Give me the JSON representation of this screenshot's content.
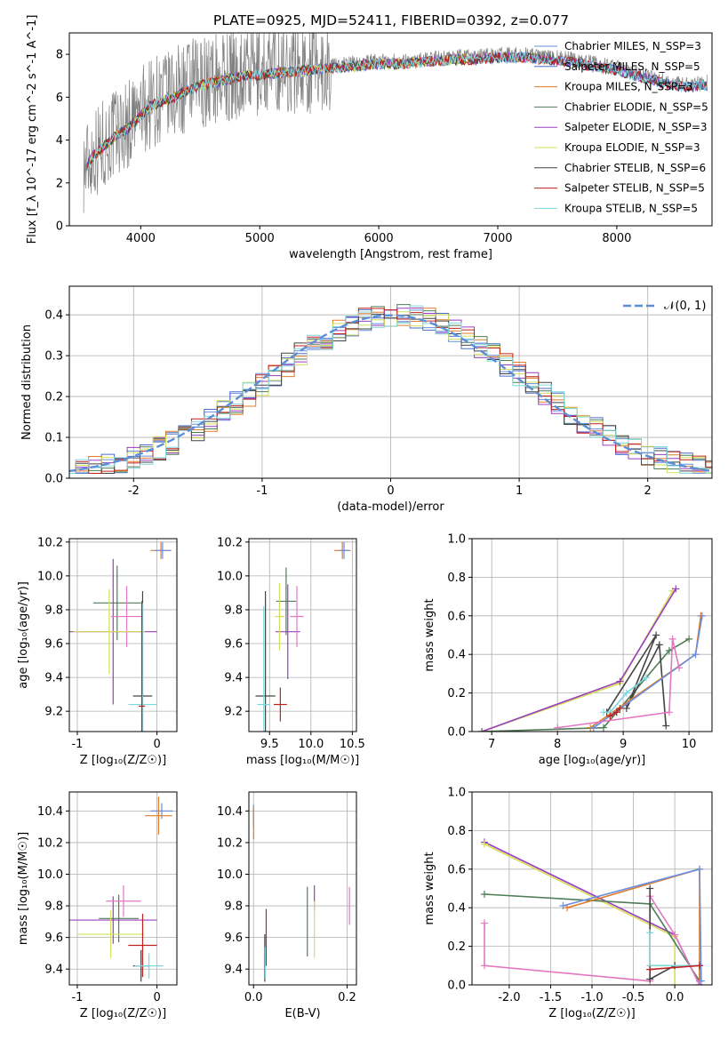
{
  "chart_data": [
    {
      "id": "spectrum",
      "type": "line",
      "title": "PLATE=0925, MJD=52411, FIBERID=0392, z=0.077",
      "xlabel": "wavelength [Angstrom, rest frame]",
      "ylabel": "Flux [f_λ 10^-17 erg cm^-2 s^-1 A^-1]",
      "xlim": [
        3400,
        8800
      ],
      "ylim": [
        0,
        9
      ],
      "xticks": [
        4000,
        5000,
        6000,
        7000,
        8000
      ],
      "yticks": [
        0,
        2,
        4,
        6,
        8
      ],
      "grid": false,
      "legend_position": "top-right",
      "data_continuum": {
        "x": [
          3530,
          3600,
          3700,
          3800,
          3900,
          4000,
          4100,
          4200,
          4300,
          4400,
          4500,
          4600,
          4800,
          5000,
          5200,
          5400,
          5600,
          5800,
          6000,
          6200,
          6400,
          6600,
          6800,
          7000,
          7200,
          7400,
          7600,
          7800,
          8000,
          8200,
          8400,
          8600,
          8750
        ],
        "y": [
          2.8,
          3.4,
          3.9,
          4.4,
          4.7,
          5.3,
          5.8,
          6.0,
          6.2,
          6.5,
          6.7,
          6.8,
          7.1,
          7.2,
          7.3,
          7.4,
          7.5,
          7.6,
          7.7,
          7.7,
          7.8,
          7.9,
          7.9,
          8.0,
          8.0,
          7.9,
          7.8,
          7.6,
          7.4,
          7.1,
          6.8,
          6.6,
          6.7
        ]
      },
      "series": [
        {
          "name": "Chabrier MILES, N_SSP=3",
          "color": "#6a8ee0"
        },
        {
          "name": "Salpeter MILES, N_SSP=5",
          "color": "#4a6fc8"
        },
        {
          "name": "Kroupa MILES, N_SSP=3",
          "color": "#e07b2a"
        },
        {
          "name": "Chabrier ELODIE, N_SSP=5",
          "color": "#4f7d56"
        },
        {
          "name": "Salpeter ELODIE, N_SSP=3",
          "color": "#9a3fbf"
        },
        {
          "name": "Kroupa ELODIE, N_SSP=3",
          "color": "#d4e05a"
        },
        {
          "name": "Chabrier STELIB, N_SSP=6",
          "color": "#444444"
        },
        {
          "name": "Salpeter STELIB, N_SSP=5",
          "color": "#c0201e"
        },
        {
          "name": "Kroupa STELIB, N_SSP=5",
          "color": "#7fd6dc"
        }
      ]
    },
    {
      "id": "residuals",
      "type": "line",
      "xlabel": "(data-model)/error",
      "ylabel": "Normed distribution",
      "xlim": [
        -2.5,
        2.5
      ],
      "ylim": [
        0,
        0.47
      ],
      "xticks": [
        -2,
        -1,
        0,
        1,
        2
      ],
      "yticks": [
        0.0,
        0.1,
        0.2,
        0.3,
        0.4
      ],
      "grid": true,
      "legend_position": "top-right",
      "legend_label": "𝒩(0, 1)",
      "gaussian": {
        "mean": 0,
        "sigma": 1,
        "color": "#5b8ed6"
      },
      "bin_width": 0.1,
      "base_histogram": [
        0.018,
        0.019,
        0.021,
        0.024,
        0.027,
        0.031,
        0.036,
        0.041,
        0.047,
        0.054,
        0.061,
        0.069,
        0.078,
        0.087,
        0.098,
        0.108,
        0.122,
        0.135,
        0.15,
        0.166,
        0.183,
        0.2,
        0.218,
        0.236,
        0.255,
        0.274,
        0.293,
        0.312,
        0.33,
        0.347,
        0.362,
        0.376,
        0.387,
        0.394,
        0.398,
        0.399,
        0.397,
        0.392,
        0.384,
        0.372,
        0.358,
        0.342,
        0.324,
        0.305,
        0.286,
        0.266,
        0.246,
        0.226,
        0.207,
        0.188,
        0.17,
        0.153,
        0.137,
        0.121,
        0.107,
        0.094,
        0.082,
        0.071,
        0.061,
        0.052,
        0.045,
        0.039,
        0.034,
        0.03,
        0.027,
        0.025,
        0.023,
        0.022,
        0.021,
        0.02,
        0.02,
        0.019,
        0.019,
        0.018,
        0.018,
        0.018,
        0.018,
        0.018,
        0.018,
        0.018,
        0.018,
        0.018,
        0.018,
        0.018,
        0.018,
        0.018,
        0.018,
        0.018,
        0.018,
        0.018,
        0.018,
        0.018,
        0.018,
        0.018,
        0.018,
        0.018,
        0.018,
        0.018,
        0.018,
        0.018
      ]
    },
    {
      "id": "age_vs_Z",
      "type": "scatter",
      "xlabel": "Z [log₁₀(Z/Z☉)]",
      "ylabel": "age  [log₁₀(age/yr)]",
      "xlim": [
        -1.1,
        0.25
      ],
      "ylim": [
        9.08,
        10.22
      ],
      "xticks": [
        -1,
        0
      ],
      "yticks": [
        9.2,
        9.4,
        9.6,
        9.8,
        10.0,
        10.2
      ],
      "grid": true,
      "points": [
        {
          "color": "#e07b2a",
          "x": 0.05,
          "y": 10.15,
          "xerr": 0.13,
          "yerr": 0.05
        },
        {
          "color": "#6a8ee0",
          "x": 0.07,
          "y": 10.15,
          "xerr": 0.1,
          "yerr": 0.05
        },
        {
          "color": "#9a3fbf",
          "x": -0.55,
          "y": 9.67,
          "xerr": 0.55,
          "yerr": 0.43
        },
        {
          "color": "#4f7d56",
          "x": -0.5,
          "y": 9.84,
          "xerr": 0.3,
          "yerr": 0.22
        },
        {
          "color": "#e377c2",
          "x": -0.38,
          "y": 9.76,
          "xerr": 0.2,
          "yerr": 0.18
        },
        {
          "color": "#d4e05a",
          "x": -0.6,
          "y": 9.67,
          "xerr": 0.45,
          "yerr": 0.25
        },
        {
          "color": "#444444",
          "x": -0.18,
          "y": 9.29,
          "xerr": 0.12,
          "yerr": 0.62
        },
        {
          "color": "#7fd6dc",
          "x": -0.18,
          "y": 9.24,
          "xerr": 0.18,
          "yerr": 0.6
        },
        {
          "color": "#c0201e",
          "x": -0.19,
          "y": 9.23,
          "xerr": 0.04,
          "yerr": 0.62
        }
      ]
    },
    {
      "id": "age_vs_mass",
      "type": "scatter",
      "xlabel": "mass [log₁₀(M/M☉)]",
      "ylabel": "",
      "xlim": [
        9.25,
        10.55
      ],
      "ylim": [
        9.08,
        10.22
      ],
      "xticks": [
        9.5,
        10.0,
        10.5
      ],
      "yticks": [
        9.2,
        9.4,
        9.6,
        9.8,
        10.0,
        10.2
      ],
      "grid": true,
      "points": [
        {
          "color": "#e07b2a",
          "x": 10.38,
          "y": 10.15,
          "xerr": 0.1,
          "yerr": 0.05
        },
        {
          "color": "#6a8ee0",
          "x": 10.4,
          "y": 10.15,
          "xerr": 0.06,
          "yerr": 0.05
        },
        {
          "color": "#9a3fbf",
          "x": 9.72,
          "y": 9.67,
          "xerr": 0.15,
          "yerr": 0.28
        },
        {
          "color": "#4f7d56",
          "x": 9.7,
          "y": 9.85,
          "xerr": 0.12,
          "yerr": 0.2
        },
        {
          "color": "#e377c2",
          "x": 9.83,
          "y": 9.76,
          "xerr": 0.08,
          "yerr": 0.18
        },
        {
          "color": "#d4e05a",
          "x": 9.62,
          "y": 9.76,
          "xerr": 0.06,
          "yerr": 0.2
        },
        {
          "color": "#444444",
          "x": 9.45,
          "y": 9.29,
          "xerr": 0.12,
          "yerr": 0.62
        },
        {
          "color": "#7fd6dc",
          "x": 9.43,
          "y": 9.24,
          "xerr": 0.08,
          "yerr": 0.58
        },
        {
          "color": "#c0201e",
          "x": 9.63,
          "y": 9.24,
          "xerr": 0.08,
          "yerr": 0.1
        }
      ]
    },
    {
      "id": "massweight_vs_age",
      "type": "line",
      "xlabel": "age  [log₁₀(age/yr)]",
      "ylabel": "mass weight",
      "xlim": [
        6.7,
        10.35
      ],
      "ylim": [
        0,
        1
      ],
      "xticks": [
        7,
        8,
        9,
        10
      ],
      "yticks": [
        0.0,
        0.2,
        0.4,
        0.6,
        0.8,
        1.0
      ],
      "grid": true,
      "series": [
        {
          "color": "#d4e05a",
          "x": [
            6.85,
            8.95,
            9.75
          ],
          "y": [
            0.0,
            0.25,
            0.73
          ]
        },
        {
          "color": "#9a3fbf",
          "x": [
            6.85,
            8.95,
            9.8
          ],
          "y": [
            0.0,
            0.26,
            0.74
          ]
        },
        {
          "color": "#4f7d56",
          "x": [
            6.85,
            8.7,
            8.9,
            9.7,
            10.0
          ],
          "y": [
            0.0,
            0.02,
            0.1,
            0.42,
            0.48
          ]
        },
        {
          "color": "#444444",
          "x": [
            8.75,
            9.5,
            9.05,
            9.55,
            9.65
          ],
          "y": [
            0.1,
            0.5,
            0.12,
            0.45,
            0.03
          ]
        },
        {
          "color": "#e07b2a",
          "x": [
            8.5,
            10.1,
            10.18
          ],
          "y": [
            0.02,
            0.4,
            0.6
          ]
        },
        {
          "color": "#6a8ee0",
          "x": [
            8.55,
            10.1,
            10.2
          ],
          "y": [
            0.02,
            0.4,
            0.6
          ]
        },
        {
          "color": "#e377c2",
          "x": [
            8.0,
            9.7,
            9.75,
            9.85
          ],
          "y": [
            0.02,
            0.1,
            0.48,
            0.33
          ]
        },
        {
          "color": "#7fd6dc",
          "x": [
            8.7,
            8.8,
            9.05,
            9.35
          ],
          "y": [
            0.1,
            0.1,
            0.2,
            0.28
          ]
        },
        {
          "color": "#c0201e",
          "x": [
            8.8,
            8.9,
            8.95
          ],
          "y": [
            0.08,
            0.1,
            0.12
          ]
        }
      ]
    },
    {
      "id": "mass_vs_Z",
      "type": "scatter",
      "xlabel": "Z [log₁₀(Z/Z☉)]",
      "ylabel": "mass [log₁₀(M/M☉)]",
      "xlim": [
        -1.1,
        0.25
      ],
      "ylim": [
        9.3,
        10.52
      ],
      "xticks": [
        -1,
        0
      ],
      "yticks": [
        9.4,
        9.6,
        9.8,
        10.0,
        10.2,
        10.4
      ],
      "grid": true,
      "points": [
        {
          "color": "#6a8ee0",
          "x": 0.06,
          "y": 10.4,
          "xerr": 0.14,
          "yerr": 0.05
        },
        {
          "color": "#e07b2a",
          "x": 0.02,
          "y": 10.37,
          "xerr": 0.17,
          "yerr": 0.12
        },
        {
          "color": "#9a3fbf",
          "x": -0.55,
          "y": 9.71,
          "xerr": 0.55,
          "yerr": 0.15
        },
        {
          "color": "#4f7d56",
          "x": -0.48,
          "y": 9.72,
          "xerr": 0.25,
          "yerr": 0.15
        },
        {
          "color": "#e377c2",
          "x": -0.42,
          "y": 9.83,
          "xerr": 0.22,
          "yerr": 0.1
        },
        {
          "color": "#d4e05a",
          "x": -0.58,
          "y": 9.62,
          "xerr": 0.42,
          "yerr": 0.15
        },
        {
          "color": "#c0201e",
          "x": -0.18,
          "y": 9.55,
          "xerr": 0.18,
          "yerr": 0.2
        },
        {
          "color": "#444444",
          "x": -0.2,
          "y": 9.42,
          "xerr": 0.1,
          "yerr": 0.1
        },
        {
          "color": "#7fd6dc",
          "x": -0.1,
          "y": 9.42,
          "xerr": 0.18,
          "yerr": 0.08
        }
      ]
    },
    {
      "id": "mass_vs_ebv",
      "type": "scatter",
      "xlabel": "E(B-V)",
      "ylabel": "",
      "xlim": [
        -0.01,
        0.22
      ],
      "ylim": [
        9.3,
        10.52
      ],
      "xticks": [
        0.0,
        0.2
      ],
      "yticks": [
        9.4,
        9.6,
        9.8,
        10.0,
        10.2,
        10.4
      ],
      "grid": true,
      "points": [
        {
          "color": "#6a8ee0",
          "x": 0.0,
          "y": 10.37,
          "xerr": 0.0,
          "yerr": 0.07
        },
        {
          "color": "#e07b2a",
          "x": 0.0,
          "y": 10.32,
          "xerr": 0.0,
          "yerr": 0.1
        },
        {
          "color": "#c0201e",
          "x": 0.027,
          "y": 9.6,
          "xerr": 0.0,
          "yerr": 0.18
        },
        {
          "color": "#444444",
          "x": 0.024,
          "y": 9.47,
          "xerr": 0.0,
          "yerr": 0.15
        },
        {
          "color": "#7fd6dc",
          "x": 0.025,
          "y": 9.44,
          "xerr": 0.0,
          "yerr": 0.1
        },
        {
          "color": "#4f7d56",
          "x": 0.115,
          "y": 9.7,
          "xerr": 0.0,
          "yerr": 0.22
        },
        {
          "color": "#9a3fbf",
          "x": 0.13,
          "y": 9.85,
          "xerr": 0.0,
          "yerr": 0.08
        },
        {
          "color": "#d4e05a",
          "x": 0.13,
          "y": 9.65,
          "xerr": 0.0,
          "yerr": 0.18
        },
        {
          "color": "#e377c2",
          "x": 0.205,
          "y": 9.8,
          "xerr": 0.0,
          "yerr": 0.12
        }
      ]
    },
    {
      "id": "massweight_vs_Z",
      "type": "line",
      "xlabel": "Z [log₁₀(Z/Z☉)]",
      "ylabel": "mass weight",
      "xlim": [
        -2.45,
        0.45
      ],
      "ylim": [
        0,
        1
      ],
      "xticks": [
        -2.0,
        -1.5,
        -1.0,
        -0.5,
        0.0
      ],
      "yticks": [
        0.0,
        0.2,
        0.4,
        0.6,
        0.8,
        1.0
      ],
      "grid": true,
      "series": [
        {
          "color": "#9a3fbf",
          "x": [
            -2.3,
            0.0,
            0.3
          ],
          "y": [
            0.74,
            0.26,
            0.0
          ]
        },
        {
          "color": "#d4e05a",
          "x": [
            -2.3,
            0.0,
            0.0
          ],
          "y": [
            0.73,
            0.25,
            0.0
          ]
        },
        {
          "color": "#4f7d56",
          "x": [
            -2.3,
            -0.3,
            0.3,
            0.3
          ],
          "y": [
            0.47,
            0.42,
            0.02,
            0.1
          ]
        },
        {
          "color": "#e07b2a",
          "x": [
            -1.3,
            0.3,
            0.3
          ],
          "y": [
            0.4,
            0.6,
            0.02
          ]
        },
        {
          "color": "#6a8ee0",
          "x": [
            -1.35,
            0.3,
            0.32
          ],
          "y": [
            0.41,
            0.6,
            0.02
          ]
        },
        {
          "color": "#e377c2",
          "x": [
            -2.3,
            -2.3,
            -0.3,
            -0.3,
            0.0,
            0.3
          ],
          "y": [
            0.32,
            0.1,
            0.02,
            0.46,
            0.26,
            0.0
          ]
        },
        {
          "color": "#444444",
          "x": [
            -0.3,
            -0.3,
            0.0,
            0.3
          ],
          "y": [
            0.5,
            0.03,
            0.1,
            0.1
          ]
        },
        {
          "color": "#7fd6dc",
          "x": [
            -0.3,
            -0.3,
            0.3
          ],
          "y": [
            0.27,
            0.1,
            0.1
          ]
        },
        {
          "color": "#c0201e",
          "x": [
            -0.3,
            0.3
          ],
          "y": [
            0.08,
            0.1
          ]
        }
      ]
    }
  ]
}
